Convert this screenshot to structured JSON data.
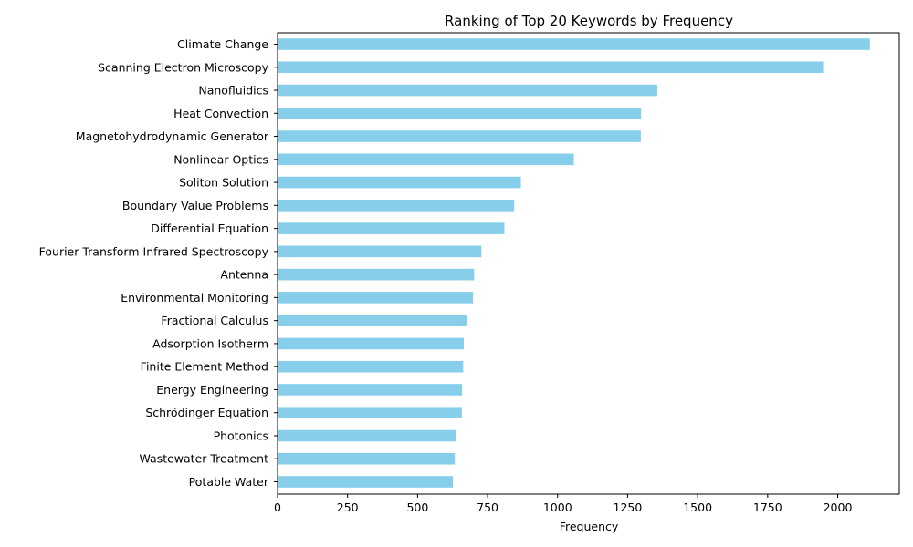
{
  "chart_data": {
    "type": "bar",
    "orientation": "horizontal",
    "title": "Ranking of Top 20 Keywords by Frequency",
    "xlabel": "Frequency",
    "ylabel": "",
    "xlim": [
      0,
      2220
    ],
    "xticks": [
      0,
      250,
      500,
      750,
      1000,
      1250,
      1500,
      1750,
      2000
    ],
    "grid": false,
    "bar_color": "#87ceeb",
    "categories": [
      "Climate Change",
      "Scanning Electron Microscopy",
      "Nanofluidics",
      "Heat Convection",
      "Magnetohydrodynamic Generator",
      "Nonlinear Optics",
      "Soliton Solution",
      "Boundary Value Problems",
      "Differential Equation",
      "Fourier Transform Infrared Spectroscopy",
      "Antenna",
      "Environmental Monitoring",
      "Fractional Calculus",
      "Adsorption Isotherm",
      "Finite Element Method",
      "Energy Engineering",
      "Schrödinger Equation",
      "Photonics",
      "Wastewater Treatment",
      "Potable Water"
    ],
    "values": [
      2115,
      1948,
      1356,
      1298,
      1297,
      1058,
      869,
      845,
      810,
      728,
      702,
      698,
      677,
      665,
      663,
      659,
      658,
      637,
      633,
      626
    ]
  }
}
